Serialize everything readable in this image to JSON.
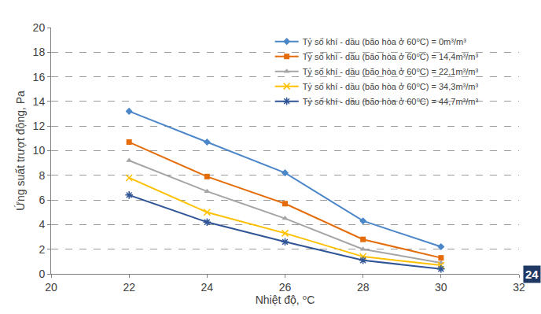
{
  "chart_data": {
    "type": "line",
    "x_label": "Nhiệt độ, ⁰C",
    "y_label": "Ứng suất trượt động, Pa",
    "x": [
      22,
      24,
      26,
      28,
      30
    ],
    "series": [
      {
        "name": "Tỷ số khí - dầu (bão hòa ở 60⁰C) = 0m³/m³",
        "color": "#4a86c8",
        "marker": "diamond",
        "values": [
          13.2,
          10.7,
          8.2,
          4.3,
          2.2
        ]
      },
      {
        "name": "Tỷ số khí - dầu (bão hòa ở 60⁰C) = 14,4m³/m³",
        "color": "#e46c0a",
        "marker": "square",
        "values": [
          10.7,
          7.9,
          5.7,
          2.8,
          1.3
        ]
      },
      {
        "name": "Tỷ số khí - dầu (bão hòa ở 60⁰C) = 22,1m³/m³",
        "color": "#a5a5a5",
        "marker": "triangle",
        "values": [
          9.2,
          6.7,
          4.5,
          2.0,
          0.9
        ]
      },
      {
        "name": "Tỷ số khí - dầu (bão hòa ở 60⁰C) = 34,3m³/m³",
        "color": "#ffc000",
        "marker": "x",
        "values": [
          7.8,
          5.0,
          3.3,
          1.4,
          0.7
        ]
      },
      {
        "name": "Tỷ số khí - dầu (bão hòa ở 60⁰C) = 44,7m³/m³",
        "color": "#2f5597",
        "marker": "asterisk",
        "values": [
          6.4,
          4.2,
          2.6,
          1.1,
          0.4
        ]
      }
    ],
    "xlim": [
      20,
      32
    ],
    "xticks": [
      20,
      22,
      24,
      26,
      28,
      30,
      32
    ],
    "ylim": [
      0,
      20
    ],
    "yticks": [
      0,
      2,
      4,
      6,
      8,
      10,
      12,
      14,
      16,
      18,
      20
    ],
    "grid": true,
    "legend": "top-right",
    "annotations": [
      "24"
    ]
  }
}
